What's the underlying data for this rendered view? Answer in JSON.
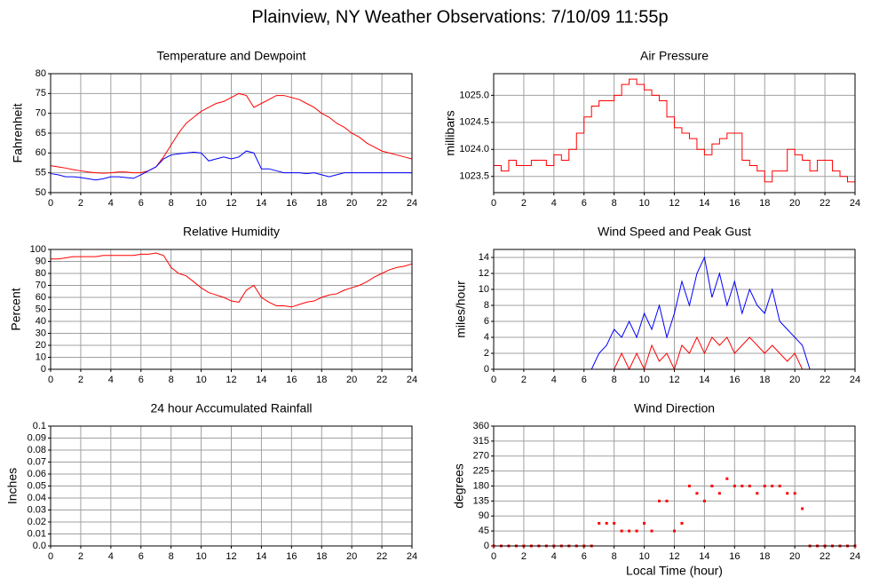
{
  "title": "Plainview, NY Weather Observations: 7/10/09 11:55p",
  "chart_data": [
    {
      "type": "line",
      "title": "Temperature and Dewpoint",
      "y_label": "Fahrenheit",
      "xlim": [
        0,
        24
      ],
      "xticks": [
        0,
        2,
        4,
        6,
        8,
        10,
        12,
        14,
        16,
        18,
        20,
        22,
        24
      ],
      "ylim": [
        50,
        80
      ],
      "yticks": [
        50,
        55,
        60,
        65,
        70,
        75,
        80
      ],
      "grid": true,
      "x": [
        0,
        0.5,
        1,
        1.5,
        2,
        2.5,
        3,
        3.5,
        4,
        4.5,
        5,
        5.5,
        6,
        6.5,
        7,
        7.5,
        8,
        8.5,
        9,
        9.5,
        10,
        10.5,
        11,
        11.5,
        12,
        12.5,
        13,
        13.5,
        14,
        14.5,
        15,
        15.5,
        16,
        16.5,
        17,
        17.5,
        18,
        18.5,
        19,
        19.5,
        20,
        20.5,
        21,
        21.5,
        22,
        22.5,
        23,
        23.5,
        24
      ],
      "series": [
        {
          "color": "#ff0000",
          "values": [
            56.8,
            56.5,
            56.2,
            55.8,
            55.5,
            55.2,
            55,
            54.9,
            55,
            55.2,
            55.2,
            55,
            55,
            55.5,
            56.5,
            59,
            62,
            65,
            67.5,
            69,
            70.5,
            71.5,
            72.5,
            73,
            74,
            75,
            74.5,
            71.5,
            72.5,
            73.5,
            74.5,
            74.5,
            74,
            73.5,
            72.5,
            71.5,
            70,
            69,
            67.5,
            66.5,
            65,
            64,
            62.5,
            61.5,
            60.5,
            60,
            59.5,
            59,
            58.5
          ]
        },
        {
          "color": "#0000ff",
          "values": [
            54.8,
            54.5,
            54,
            54,
            53.8,
            53.5,
            53.2,
            53.5,
            54,
            54,
            53.8,
            53.6,
            54.5,
            55.5,
            56.5,
            58.5,
            59.5,
            59.8,
            60,
            60.2,
            60,
            58,
            58.5,
            59,
            58.5,
            59,
            60.5,
            60,
            56,
            56,
            55.5,
            55,
            55,
            55,
            54.8,
            55,
            54.5,
            54,
            54.5,
            55,
            55,
            55,
            55,
            55,
            55,
            55,
            55,
            55,
            55
          ]
        }
      ]
    },
    {
      "type": "line",
      "step": true,
      "title": "Air Pressure",
      "y_label": "millibars",
      "xlim": [
        0,
        24
      ],
      "xticks": [
        0,
        2,
        4,
        6,
        8,
        10,
        12,
        14,
        16,
        18,
        20,
        22,
        24
      ],
      "ylim": [
        1023.2,
        1025.4
      ],
      "yticks": [
        1023.5,
        {
          "value": 1024,
          "label": "1024.0"
        },
        1024.5,
        {
          "value": 1025,
          "label": "1025.0"
        }
      ],
      "grid": true,
      "x": [
        0,
        0.5,
        1,
        1.5,
        2,
        2.5,
        3,
        3.5,
        4,
        4.5,
        5,
        5.5,
        6,
        6.5,
        7,
        7.5,
        8,
        8.5,
        9,
        9.5,
        10,
        10.5,
        11,
        11.5,
        12,
        12.5,
        13,
        13.5,
        14,
        14.5,
        15,
        15.5,
        16,
        16.5,
        17,
        17.5,
        18,
        18.5,
        19,
        19.5,
        20,
        20.5,
        21,
        21.5,
        22,
        22.5,
        23,
        23.5,
        24
      ],
      "series": [
        {
          "color": "#ff0000",
          "values": [
            1023.7,
            1023.6,
            1023.8,
            1023.7,
            1023.7,
            1023.8,
            1023.8,
            1023.7,
            1023.9,
            1023.8,
            1024.0,
            1024.3,
            1024.6,
            1024.8,
            1024.9,
            1024.9,
            1025.0,
            1025.2,
            1025.3,
            1025.2,
            1025.1,
            1025.0,
            1024.9,
            1024.6,
            1024.4,
            1024.3,
            1024.2,
            1024.0,
            1023.9,
            1024.1,
            1024.2,
            1024.3,
            1024.3,
            1023.8,
            1023.7,
            1023.6,
            1023.4,
            1023.6,
            1023.6,
            1024.0,
            1023.9,
            1023.8,
            1023.6,
            1023.8,
            1023.8,
            1023.6,
            1023.5,
            1023.4,
            1023.3
          ]
        }
      ]
    },
    {
      "type": "line",
      "title": "Relative Humidity",
      "y_label": "Percent",
      "xlim": [
        0,
        24
      ],
      "xticks": [
        0,
        2,
        4,
        6,
        8,
        10,
        12,
        14,
        16,
        18,
        20,
        22,
        24
      ],
      "ylim": [
        0,
        100
      ],
      "yticks": [
        0,
        10,
        20,
        30,
        40,
        50,
        60,
        70,
        80,
        90,
        100
      ],
      "grid": true,
      "x": [
        0,
        0.5,
        1,
        1.5,
        2,
        2.5,
        3,
        3.5,
        4,
        4.5,
        5,
        5.5,
        6,
        6.5,
        7,
        7.5,
        8,
        8.5,
        9,
        9.5,
        10,
        10.5,
        11,
        11.5,
        12,
        12.5,
        13,
        13.5,
        14,
        14.5,
        15,
        15.5,
        16,
        16.5,
        17,
        17.5,
        18,
        18.5,
        19,
        19.5,
        20,
        20.5,
        21,
        21.5,
        22,
        22.5,
        23,
        23.5,
        24
      ],
      "series": [
        {
          "color": "#ff0000",
          "values": [
            92,
            92,
            93,
            94,
            94,
            94,
            94,
            95,
            95,
            95,
            95,
            95,
            96,
            96,
            97,
            95,
            85,
            80,
            78,
            73,
            68,
            64,
            62,
            60,
            57,
            56,
            66,
            70,
            60,
            56,
            53,
            53,
            52,
            54,
            56,
            57,
            60,
            62,
            63,
            66,
            68,
            70,
            73,
            77,
            80,
            83,
            85,
            86,
            88
          ]
        }
      ]
    },
    {
      "type": "line",
      "title": "Wind Speed and Peak Gust",
      "y_label": "miles/hour",
      "xlim": [
        0,
        24
      ],
      "xticks": [
        0,
        2,
        4,
        6,
        8,
        10,
        12,
        14,
        16,
        18,
        20,
        22,
        24
      ],
      "ylim": [
        0,
        15
      ],
      "yticks": [
        0,
        2,
        4,
        6,
        8,
        10,
        12,
        14
      ],
      "grid": true,
      "x": [
        0,
        0.5,
        1,
        1.5,
        2,
        2.5,
        3,
        3.5,
        4,
        4.5,
        5,
        5.5,
        6,
        6.5,
        7,
        7.5,
        8,
        8.5,
        9,
        9.5,
        10,
        10.5,
        11,
        11.5,
        12,
        12.5,
        13,
        13.5,
        14,
        14.5,
        15,
        15.5,
        16,
        16.5,
        17,
        17.5,
        18,
        18.5,
        19,
        19.5,
        20,
        20.5,
        21,
        21.5,
        22,
        22.5,
        23,
        23.5,
        24
      ],
      "series": [
        {
          "color": "#0000ff",
          "values": [
            0,
            0,
            0,
            0,
            0,
            0,
            0,
            0,
            0,
            0,
            0,
            0,
            0,
            0,
            2,
            3,
            5,
            4,
            6,
            4,
            7,
            5,
            8,
            4,
            7,
            11,
            8,
            12,
            14,
            9,
            12,
            8,
            11,
            7,
            10,
            8,
            7,
            10,
            6,
            5,
            4,
            3,
            0,
            0,
            0,
            0,
            0,
            0,
            0
          ]
        },
        {
          "color": "#ff0000",
          "values": [
            0,
            0,
            0,
            0,
            0,
            0,
            0,
            0,
            0,
            0,
            0,
            0,
            0,
            0,
            0,
            0,
            0,
            2,
            0,
            2,
            0,
            3,
            1,
            2,
            0,
            3,
            2,
            4,
            2,
            4,
            3,
            4,
            2,
            3,
            4,
            3,
            2,
            3,
            2,
            1,
            2,
            0,
            0,
            0,
            0,
            0,
            0,
            0,
            0
          ]
        }
      ]
    },
    {
      "type": "line",
      "title": "24 hour Accumulated Rainfall",
      "y_label": "Inches",
      "xlim": [
        0,
        24
      ],
      "xticks": [
        0,
        2,
        4,
        6,
        8,
        10,
        12,
        14,
        16,
        18,
        20,
        22,
        24
      ],
      "ylim": [
        0,
        0.1
      ],
      "yticks": [
        {
          "value": 0,
          "label": "0.0"
        },
        0.01,
        0.02,
        0.03,
        0.04,
        0.05,
        0.06,
        0.07,
        0.08,
        0.09,
        0.1
      ],
      "grid": true,
      "x": [
        0,
        24
      ],
      "series": [
        {
          "color": "#ff0000",
          "values": [
            0,
            0
          ]
        }
      ]
    },
    {
      "type": "scatter",
      "title": "Wind Direction",
      "y_label": "degrees",
      "x_label": "Local Time (hour)",
      "xlim": [
        0,
        24
      ],
      "xticks": [
        0,
        2,
        4,
        6,
        8,
        10,
        12,
        14,
        16,
        18,
        20,
        22,
        24
      ],
      "ylim": [
        0,
        360
      ],
      "yticks": [
        0,
        45,
        90,
        135,
        180,
        225,
        270,
        315,
        360
      ],
      "grid": true,
      "x": [
        0,
        0.5,
        1,
        1.5,
        2,
        2.5,
        3,
        3.5,
        4,
        4.5,
        5,
        5.5,
        6,
        6.5,
        7,
        7.5,
        8,
        8.5,
        9,
        9.5,
        10,
        10.5,
        11,
        11.5,
        12,
        12.5,
        13,
        13.5,
        14,
        14.5,
        15,
        15.5,
        16,
        16.5,
        17,
        17.5,
        18,
        18.5,
        19,
        19.5,
        20,
        20.5,
        21,
        21.5,
        22,
        22.5,
        23,
        23.5,
        24
      ],
      "series": [
        {
          "color": "#ff0000",
          "values": [
            0,
            0,
            0,
            0,
            0,
            0,
            0,
            0,
            0,
            0,
            0,
            0,
            0,
            0,
            68,
            68,
            68,
            45,
            45,
            45,
            68,
            45,
            135,
            135,
            45,
            68,
            180,
            158,
            135,
            180,
            158,
            202,
            180,
            180,
            180,
            158,
            180,
            180,
            180,
            158,
            158,
            112,
            0,
            0,
            0,
            0,
            0,
            0,
            0
          ]
        }
      ]
    }
  ]
}
